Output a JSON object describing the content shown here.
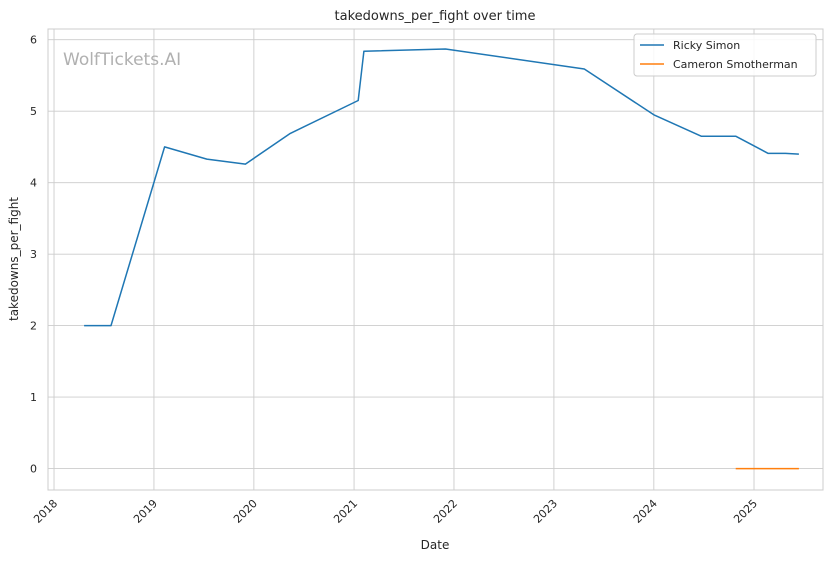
{
  "chart_data": {
    "type": "line",
    "title": "takedowns_per_fight over time",
    "xlabel": "Date",
    "ylabel": "takedowns_per_fight",
    "watermark": "WolfTickets.AI",
    "xlim": [
      "2017-12-10",
      "2025-09-10"
    ],
    "ylim": [
      -0.3,
      6.15
    ],
    "x_ticks": [
      "2018-01-01",
      "2019-01-01",
      "2020-01-01",
      "2021-01-01",
      "2022-01-01",
      "2023-01-01",
      "2024-01-01",
      "2025-01-01"
    ],
    "x_tick_labels": [
      "2018",
      "2019",
      "2020",
      "2021",
      "2022",
      "2023",
      "2024",
      "2025"
    ],
    "y_ticks": [
      0,
      1,
      2,
      3,
      4,
      5,
      6
    ],
    "grid": true,
    "legend_position": "top-right",
    "series": [
      {
        "name": "Ricky Simon",
        "color": "#1f77b4",
        "points": [
          {
            "x": "2018-04-21",
            "y": 2.0
          },
          {
            "x": "2018-07-28",
            "y": 2.0
          },
          {
            "x": "2019-02-09",
            "y": 4.5
          },
          {
            "x": "2019-07-13",
            "y": 4.33
          },
          {
            "x": "2019-12-01",
            "y": 4.26
          },
          {
            "x": "2020-05-13",
            "y": 4.69
          },
          {
            "x": "2021-01-16",
            "y": 5.15
          },
          {
            "x": "2021-02-06",
            "y": 5.84
          },
          {
            "x": "2021-12-01",
            "y": 5.87
          },
          {
            "x": "2023-04-22",
            "y": 5.59
          },
          {
            "x": "2024-01-01",
            "y": 4.95
          },
          {
            "x": "2024-06-22",
            "y": 4.65
          },
          {
            "x": "2024-10-26",
            "y": 4.65
          },
          {
            "x": "2025-02-22",
            "y": 4.41
          },
          {
            "x": "2025-04-26",
            "y": 4.41
          },
          {
            "x": "2025-06-14",
            "y": 4.4
          }
        ]
      },
      {
        "name": "Cameron Smotherman",
        "color": "#ff7f0e",
        "points": [
          {
            "x": "2024-10-26",
            "y": 0.0
          },
          {
            "x": "2025-06-14",
            "y": 0.0
          }
        ]
      }
    ]
  }
}
